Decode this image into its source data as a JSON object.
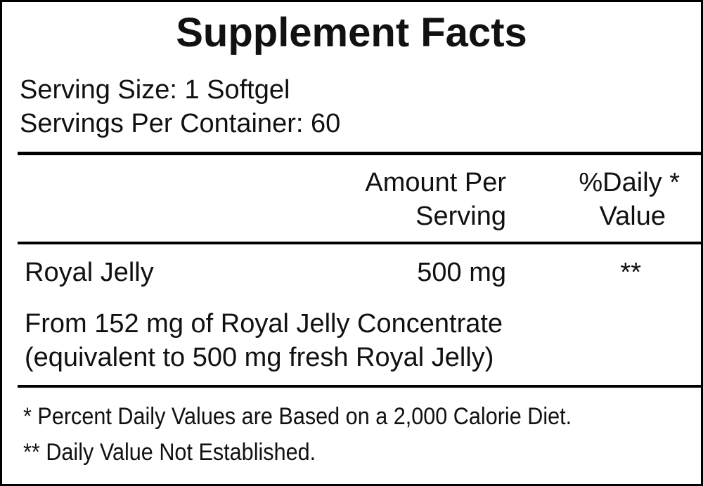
{
  "title": "Supplement Facts",
  "serving_size": "Serving Size: 1 Softgel",
  "servings_per_container": "Servings Per Container: 60",
  "header": {
    "amount_line1": "Amount Per",
    "amount_line2": "Serving",
    "dv_line1": "%Daily *",
    "dv_line2": "Value"
  },
  "rows": [
    {
      "name": "Royal Jelly",
      "amount": "500 mg",
      "dv": "**"
    }
  ],
  "note_line1": "From 152 mg of Royal Jelly Concentrate",
  "note_line2": "(equivalent to 500 mg fresh Royal Jelly)",
  "footnotes": [
    "* Percent Daily Values are Based on a 2,000 Calorie Diet.",
    "** Daily Value Not Established."
  ]
}
